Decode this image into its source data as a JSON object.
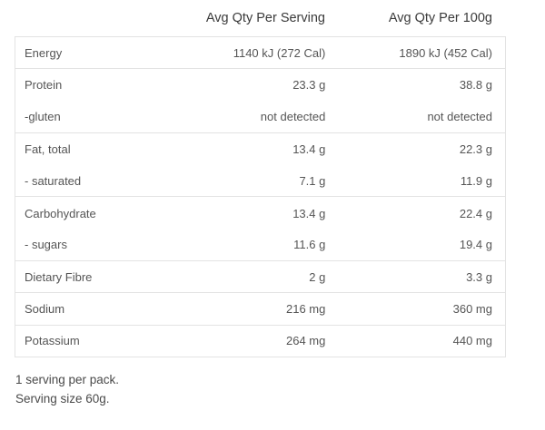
{
  "table": {
    "headers": {
      "name": "",
      "per_serving": "Avg Qty Per Serving",
      "per_100g": "Avg Qty Per 100g"
    },
    "rows": [
      {
        "name": "Energy",
        "per_serving": "1140 kJ (272 Cal)",
        "per_100g": "1890 kJ (452 Cal)"
      },
      {
        "name": "Protein",
        "per_serving": "23.3 g",
        "per_100g": "38.8 g"
      },
      {
        "name": "-gluten",
        "per_serving": "not detected",
        "per_100g": "not detected"
      },
      {
        "name": "Fat, total",
        "per_serving": "13.4 g",
        "per_100g": "22.3 g"
      },
      {
        "name": "- saturated",
        "per_serving": "7.1 g",
        "per_100g": "11.9 g"
      },
      {
        "name": "Carbohydrate",
        "per_serving": "13.4 g",
        "per_100g": "22.4 g"
      },
      {
        "name": "- sugars",
        "per_serving": "11.6 g",
        "per_100g": "19.4 g"
      },
      {
        "name": "Dietary Fibre",
        "per_serving": "2 g",
        "per_100g": "3.3 g"
      },
      {
        "name": "Sodium",
        "per_serving": "216 mg",
        "per_100g": "360 mg"
      },
      {
        "name": "Potassium",
        "per_serving": "264 mg",
        "per_100g": "440 mg"
      }
    ]
  },
  "notes": {
    "servings_per_pack": "1 serving per pack.",
    "serving_size": "Serving size 60g."
  }
}
